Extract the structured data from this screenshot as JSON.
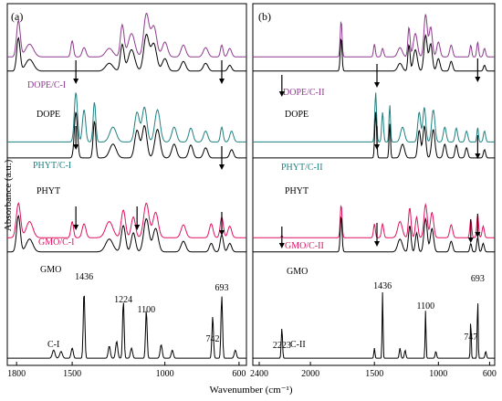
{
  "figure": {
    "ylabel": "Absorbance (a.u.)",
    "xlabel": "Wavenumber (cm⁻¹)"
  },
  "colors": {
    "black": "#000000",
    "dope_complex": "#8e3a8e",
    "phyt_complex": "#1f8080",
    "gmo_complex": "#e0115f"
  },
  "chart_data": [
    {
      "type": "line",
      "panel_label": "(a)",
      "xlim": [
        1850,
        560
      ],
      "xticks": [
        1800,
        1500,
        1000,
        600
      ],
      "xlabel": "Wavenumber (cm⁻¹)",
      "ylabel": "Absorbance (a.u.)",
      "grid": false,
      "series": [
        {
          "name": "DOPE/C-I",
          "color": "#8e3a8e",
          "offset": 0.86,
          "scale": 0.12,
          "peaks": [
            [
              1790,
              0.85,
              14
            ],
            [
              1730,
              0.3,
              30
            ],
            [
              1500,
              0.38,
              10
            ],
            [
              1436,
              0.22,
              14
            ],
            [
              1300,
              0.2,
              28
            ],
            [
              1230,
              0.75,
              14
            ],
            [
              1180,
              0.55,
              25
            ],
            [
              1100,
              1.0,
              20
            ],
            [
              1060,
              0.72,
              22
            ],
            [
              1000,
              0.35,
              20
            ],
            [
              900,
              0.28,
              18
            ],
            [
              780,
              0.22,
              18
            ],
            [
              693,
              0.28,
              10
            ],
            [
              650,
              0.2,
              14
            ]
          ]
        },
        {
          "name": "DOPE",
          "color": "#000000",
          "offset": 0.82,
          "scale": 0.11,
          "peaks": [
            [
              1790,
              0.85,
              13
            ],
            [
              1730,
              0.3,
              30
            ],
            [
              1300,
              0.2,
              28
            ],
            [
              1230,
              0.68,
              14
            ],
            [
              1180,
              0.55,
              25
            ],
            [
              1100,
              0.92,
              20
            ],
            [
              1060,
              0.7,
              22
            ],
            [
              1000,
              0.32,
              20
            ],
            [
              900,
              0.25,
              18
            ],
            [
              780,
              0.2,
              18
            ],
            [
              650,
              0.15,
              14
            ]
          ]
        },
        {
          "name": "PHYT/C-I",
          "color": "#1f8080",
          "offset": 0.62,
          "scale": 0.14,
          "peaks": [
            [
              1480,
              1.0,
              12
            ],
            [
              1436,
              0.65,
              12
            ],
            [
              1380,
              0.8,
              10
            ],
            [
              1280,
              0.3,
              25
            ],
            [
              1150,
              0.6,
              18
            ],
            [
              1110,
              0.7,
              18
            ],
            [
              1040,
              0.65,
              20
            ],
            [
              950,
              0.3,
              18
            ],
            [
              860,
              0.28,
              16
            ],
            [
              780,
              0.22,
              16
            ],
            [
              693,
              0.3,
              10
            ],
            [
              640,
              0.22,
              14
            ]
          ]
        },
        {
          "name": "PHYT",
          "color": "#000000",
          "offset": 0.575,
          "scale": 0.13,
          "peaks": [
            [
              1480,
              1.0,
              12
            ],
            [
              1380,
              0.8,
              10
            ],
            [
              1280,
              0.3,
              25
            ],
            [
              1150,
              0.6,
              18
            ],
            [
              1110,
              0.7,
              18
            ],
            [
              1040,
              0.62,
              20
            ],
            [
              950,
              0.3,
              18
            ],
            [
              860,
              0.28,
              16
            ],
            [
              780,
              0.22,
              16
            ],
            [
              640,
              0.18,
              14
            ]
          ]
        },
        {
          "name": "GMO/C-I",
          "color": "#e0115f",
          "offset": 0.35,
          "scale": 0.13,
          "peaks": [
            [
              1790,
              0.75,
              16
            ],
            [
              1730,
              0.35,
              25
            ],
            [
              1500,
              0.35,
              10
            ],
            [
              1436,
              0.3,
              14
            ],
            [
              1300,
              0.35,
              28
            ],
            [
              1224,
              0.6,
              16
            ],
            [
              1170,
              0.45,
              16
            ],
            [
              1100,
              0.75,
              20
            ],
            [
              1050,
              0.55,
              20
            ],
            [
              900,
              0.28,
              18
            ],
            [
              750,
              0.3,
              14
            ],
            [
              693,
              0.45,
              12
            ],
            [
              650,
              0.25,
              14
            ]
          ]
        },
        {
          "name": "GMO",
          "color": "#000000",
          "offset": 0.31,
          "scale": 0.12,
          "peaks": [
            [
              1790,
              0.85,
              14
            ],
            [
              1730,
              0.3,
              25
            ],
            [
              1300,
              0.3,
              28
            ],
            [
              1224,
              0.62,
              16
            ],
            [
              1170,
              0.45,
              16
            ],
            [
              1100,
              0.78,
              20
            ],
            [
              1050,
              0.55,
              20
            ],
            [
              900,
              0.25,
              18
            ],
            [
              750,
              0.2,
              14
            ],
            [
              693,
              0.4,
              12
            ],
            [
              650,
              0.2,
              14
            ]
          ]
        },
        {
          "name": "C-I",
          "color": "#000000",
          "offset": 0.01,
          "scale": 0.19,
          "peaks": [
            [
              1600,
              0.12,
              10
            ],
            [
              1560,
              0.1,
              10
            ],
            [
              1500,
              0.15,
              8
            ],
            [
              1436,
              1.0,
              6
            ],
            [
              1300,
              0.18,
              8
            ],
            [
              1260,
              0.25,
              8
            ],
            [
              1224,
              0.85,
              6
            ],
            [
              1180,
              0.15,
              8
            ],
            [
              1100,
              0.72,
              6
            ],
            [
              1020,
              0.2,
              8
            ],
            [
              960,
              0.12,
              8
            ],
            [
              742,
              0.62,
              6
            ],
            [
              693,
              0.92,
              6
            ],
            [
              620,
              0.12,
              8
            ]
          ]
        }
      ],
      "peak_labels": [
        {
          "text": "1436",
          "x": 1436
        },
        {
          "text": "1224",
          "x": 1224
        },
        {
          "text": "1100",
          "x": 1100
        },
        {
          "text": "742",
          "x": 742
        },
        {
          "text": "693",
          "x": 693
        }
      ],
      "annotations": {
        "arrows_at": [
          1480,
          693,
          1480,
          693,
          1480,
          1150,
          693
        ]
      }
    },
    {
      "type": "line",
      "panel_label": "(b)",
      "xlim": [
        2450,
        560
      ],
      "xticks": [
        2400,
        2000,
        1500,
        1000,
        600
      ],
      "xlabel": "Wavenumber (cm⁻¹)",
      "ylabel": "Absorbance (a.u.)",
      "grid": false,
      "series": [
        {
          "name": "DOPE/C-II",
          "color": "#8e3a8e",
          "offset": 0.86,
          "scale": 0.12,
          "peaks": [
            [
              1760,
              0.85,
              10
            ],
            [
              1500,
              0.3,
              10
            ],
            [
              1436,
              0.2,
              12
            ],
            [
              1300,
              0.22,
              25
            ],
            [
              1230,
              0.7,
              12
            ],
            [
              1180,
              0.55,
              22
            ],
            [
              1100,
              1.0,
              18
            ],
            [
              1060,
              0.7,
              18
            ],
            [
              1000,
              0.35,
              18
            ],
            [
              900,
              0.28,
              16
            ],
            [
              747,
              0.28,
              10
            ],
            [
              693,
              0.35,
              10
            ],
            [
              640,
              0.2,
              12
            ]
          ]
        },
        {
          "name": "DOPE",
          "color": "#000000",
          "offset": 0.82,
          "scale": 0.11,
          "peaks": [
            [
              1760,
              0.85,
              10
            ],
            [
              1300,
              0.2,
              25
            ],
            [
              1230,
              0.68,
              12
            ],
            [
              1180,
              0.55,
              22
            ],
            [
              1100,
              0.92,
              18
            ],
            [
              1060,
              0.7,
              18
            ],
            [
              1000,
              0.32,
              18
            ],
            [
              900,
              0.25,
              16
            ],
            [
              640,
              0.15,
              12
            ]
          ]
        },
        {
          "name": "PHYT/C-II",
          "color": "#1f8080",
          "offset": 0.62,
          "scale": 0.14,
          "peaks": [
            [
              1490,
              1.0,
              10
            ],
            [
              1436,
              0.6,
              10
            ],
            [
              1380,
              0.75,
              8
            ],
            [
              1280,
              0.3,
              22
            ],
            [
              1150,
              0.6,
              16
            ],
            [
              1110,
              0.7,
              16
            ],
            [
              1040,
              0.65,
              18
            ],
            [
              950,
              0.3,
              16
            ],
            [
              860,
              0.28,
              14
            ],
            [
              780,
              0.22,
              14
            ],
            [
              693,
              0.3,
              8
            ],
            [
              640,
              0.22,
              12
            ]
          ]
        },
        {
          "name": "PHYT",
          "color": "#000000",
          "offset": 0.575,
          "scale": 0.13,
          "peaks": [
            [
              1490,
              1.0,
              10
            ],
            [
              1380,
              0.75,
              8
            ],
            [
              1280,
              0.3,
              22
            ],
            [
              1150,
              0.6,
              16
            ],
            [
              1110,
              0.7,
              16
            ],
            [
              1040,
              0.62,
              18
            ],
            [
              950,
              0.3,
              16
            ],
            [
              860,
              0.28,
              14
            ],
            [
              780,
              0.22,
              14
            ],
            [
              640,
              0.18,
              12
            ]
          ]
        },
        {
          "name": "GMO/C-II",
          "color": "#e0115f",
          "offset": 0.35,
          "scale": 0.13,
          "peaks": [
            [
              2223,
              0.05,
              6
            ],
            [
              1760,
              0.72,
              10
            ],
            [
              1500,
              0.3,
              10
            ],
            [
              1436,
              0.3,
              12
            ],
            [
              1300,
              0.35,
              25
            ],
            [
              1224,
              0.65,
              14
            ],
            [
              1170,
              0.45,
              14
            ],
            [
              1100,
              0.72,
              18
            ],
            [
              1050,
              0.55,
              18
            ],
            [
              900,
              0.28,
              16
            ],
            [
              747,
              0.4,
              10
            ],
            [
              693,
              0.5,
              10
            ],
            [
              650,
              0.25,
              12
            ]
          ]
        },
        {
          "name": "GMO",
          "color": "#000000",
          "offset": 0.31,
          "scale": 0.12,
          "peaks": [
            [
              1760,
              0.85,
              10
            ],
            [
              1300,
              0.3,
              25
            ],
            [
              1224,
              0.62,
              14
            ],
            [
              1170,
              0.45,
              14
            ],
            [
              1100,
              0.78,
              18
            ],
            [
              1050,
              0.55,
              18
            ],
            [
              900,
              0.25,
              16
            ],
            [
              747,
              0.2,
              10
            ],
            [
              693,
              0.35,
              10
            ],
            [
              650,
              0.2,
              12
            ]
          ]
        },
        {
          "name": "C-II",
          "color": "#000000",
          "offset": 0.01,
          "scale": 0.19,
          "peaks": [
            [
              2223,
              0.45,
              7
            ],
            [
              1500,
              0.15,
              6
            ],
            [
              1436,
              1.0,
              5
            ],
            [
              1300,
              0.15,
              8
            ],
            [
              1260,
              0.12,
              8
            ],
            [
              1100,
              0.72,
              5
            ],
            [
              1020,
              0.1,
              8
            ],
            [
              747,
              0.6,
              5
            ],
            [
              693,
              0.92,
              5
            ],
            [
              630,
              0.1,
              8
            ]
          ]
        }
      ],
      "peak_labels": [
        {
          "text": "2223",
          "x": 2223
        },
        {
          "text": "1436",
          "x": 1436
        },
        {
          "text": "1100",
          "x": 1100
        },
        {
          "text": "747",
          "x": 747
        },
        {
          "text": "693",
          "x": 693
        }
      ],
      "annotations": {
        "arrows_at": [
          2223,
          1480,
          693,
          1480,
          693,
          2223,
          1480,
          747,
          693
        ]
      }
    }
  ]
}
